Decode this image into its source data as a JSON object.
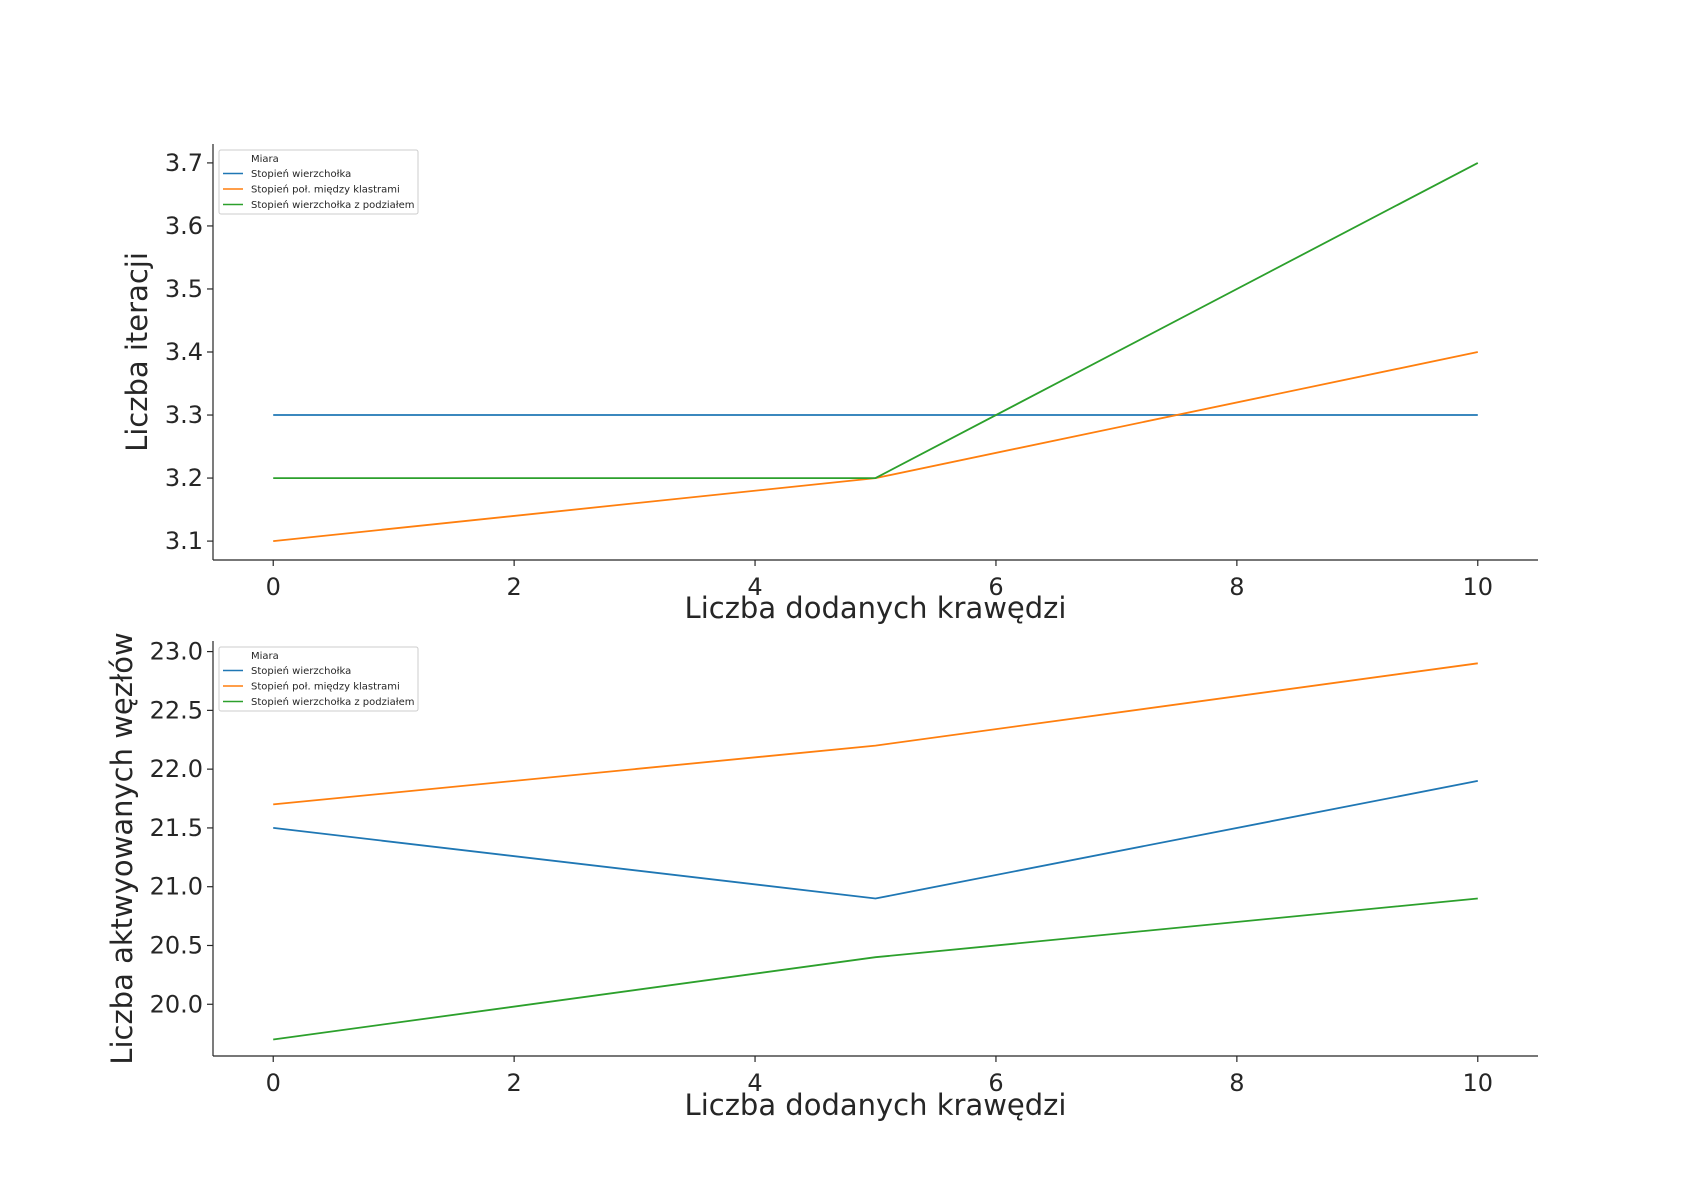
{
  "chart_data": [
    {
      "type": "line",
      "xlabel": "Liczba dodanych krawędzi",
      "ylabel": "Liczba iteracji",
      "xlim": [
        -0.5,
        10.5
      ],
      "ylim": [
        3.07,
        3.73
      ],
      "xticks": [
        0,
        2,
        4,
        6,
        8,
        10
      ],
      "xtick_labels": [
        "0",
        "2",
        "4",
        "6",
        "8",
        "10"
      ],
      "yticks": [
        3.1,
        3.2,
        3.3,
        3.4,
        3.5,
        3.6,
        3.7
      ],
      "ytick_labels": [
        "3.1",
        "3.2",
        "3.3",
        "3.4",
        "3.5",
        "3.6",
        "3.7"
      ],
      "grid": false,
      "legend": {
        "title": "Miara",
        "placement": "top-left"
      },
      "x": [
        0,
        5,
        10
      ],
      "series": [
        {
          "name": "Stopień wierzchołka",
          "color": "#1f77b4",
          "values": [
            3.3,
            3.3,
            3.3
          ]
        },
        {
          "name": "Stopień poł. między klastrami",
          "color": "#ff7f0e",
          "values": [
            3.1,
            3.2,
            3.4
          ]
        },
        {
          "name": "Stopień wierzchołka z podziałem",
          "color": "#2ca02c",
          "values": [
            3.2,
            3.2,
            3.7
          ]
        }
      ]
    },
    {
      "type": "line",
      "xlabel": "Liczba dodanych krawędzi",
      "ylabel": "Liczba aktwyowanych węzłów",
      "xlim": [
        -0.5,
        10.5
      ],
      "ylim": [
        19.56,
        23.09
      ],
      "xticks": [
        0,
        2,
        4,
        6,
        8,
        10
      ],
      "xtick_labels": [
        "0",
        "2",
        "4",
        "6",
        "8",
        "10"
      ],
      "yticks": [
        20.0,
        20.5,
        21.0,
        21.5,
        22.0,
        22.5,
        23.0
      ],
      "ytick_labels": [
        "20.0",
        "20.5",
        "21.0",
        "21.5",
        "22.0",
        "22.5",
        "23.0"
      ],
      "grid": false,
      "legend": {
        "title": "Miara",
        "placement": "top-left"
      },
      "x": [
        0,
        5,
        10
      ],
      "series": [
        {
          "name": "Stopień wierzchołka",
          "color": "#1f77b4",
          "values": [
            21.5,
            20.9,
            21.9
          ]
        },
        {
          "name": "Stopień poł. między klastrami",
          "color": "#ff7f0e",
          "values": [
            21.7,
            22.2,
            22.9
          ]
        },
        {
          "name": "Stopień wierzchołka z podziałem",
          "color": "#2ca02c",
          "values": [
            19.7,
            20.4,
            20.9
          ]
        }
      ]
    }
  ]
}
